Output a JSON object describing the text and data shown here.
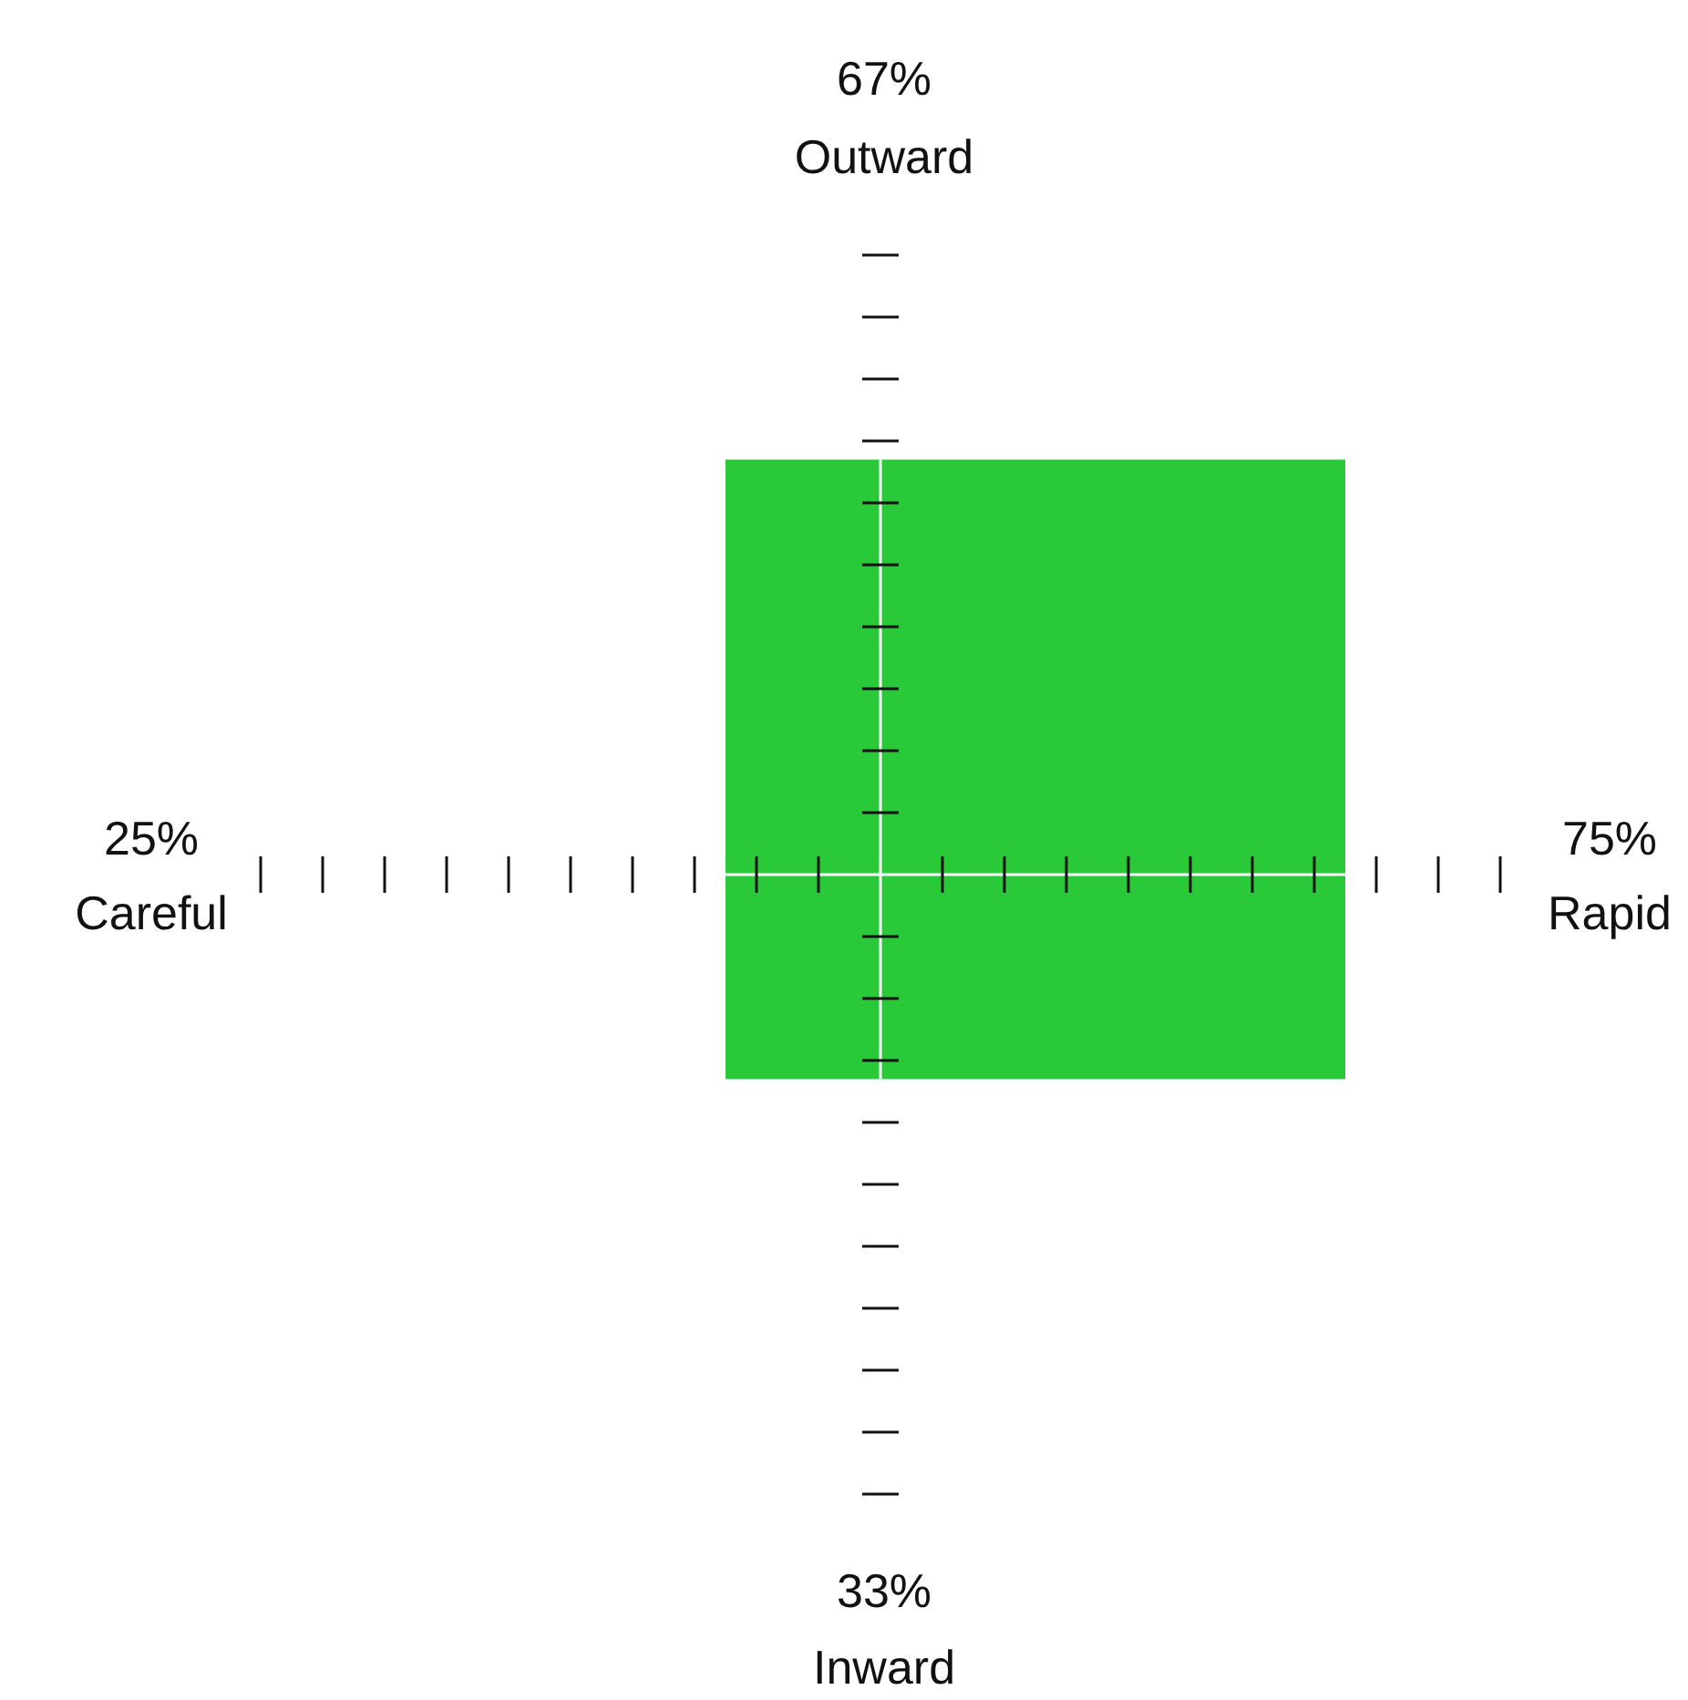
{
  "chart_data": {
    "type": "other",
    "categories": [
      "Careful",
      "Rapid",
      "Outward",
      "Inward"
    ],
    "values": [
      25,
      75,
      67,
      33
    ],
    "value_labels": [
      "25%",
      "75%",
      "67%",
      "33%"
    ],
    "color": "#29c93a"
  }
}
